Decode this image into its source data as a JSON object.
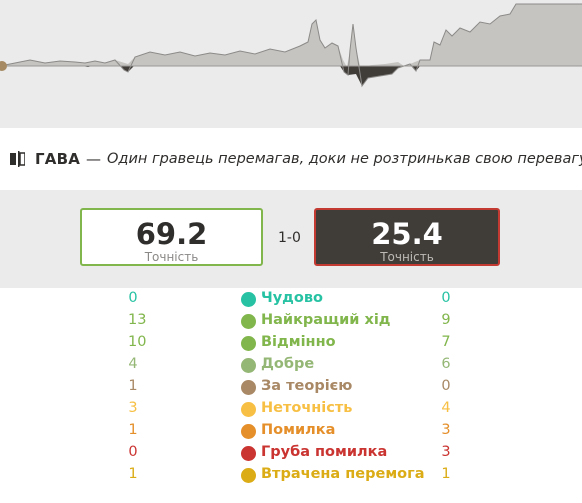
{
  "graph": {
    "label": "evaluation-graph"
  },
  "banner": {
    "name": "ГАВА",
    "separator": "—",
    "description": "Один гравець перемагав, доки не розтринькав свою перевагу."
  },
  "scores": {
    "white": {
      "value": "69.2",
      "label": "Точність"
    },
    "result": "1-0",
    "black": {
      "value": "25.4",
      "label": "Точність"
    }
  },
  "classifications": [
    {
      "white": "0",
      "label": "Чудово",
      "black": "0",
      "color": "#26c2a3",
      "symbol": "!!"
    },
    {
      "white": "13",
      "label": "Найкращий хід",
      "black": "9",
      "color": "#81b64c",
      "symbol": "★"
    },
    {
      "white": "10",
      "label": "Відмінно",
      "black": "7",
      "color": "#81b64c",
      "symbol": "👍"
    },
    {
      "white": "4",
      "label": "Добре",
      "black": "6",
      "color": "#95b776",
      "symbol": "✓"
    },
    {
      "white": "1",
      "label": "За теорією",
      "black": "0",
      "color": "#a88865",
      "symbol": "▮"
    },
    {
      "white": "3",
      "label": "Неточність",
      "black": "4",
      "color": "#f7c045",
      "symbol": "?!"
    },
    {
      "white": "1",
      "label": "Помилка",
      "black": "3",
      "color": "#e58f2a",
      "symbol": "?"
    },
    {
      "white": "0",
      "label": "Груба помилка",
      "black": "3",
      "color": "#ca3431",
      "symbol": "??"
    },
    {
      "white": "1",
      "label": "Втрачена перемога",
      "black": "1",
      "color": "#dbac16",
      "symbol": "—"
    }
  ]
}
